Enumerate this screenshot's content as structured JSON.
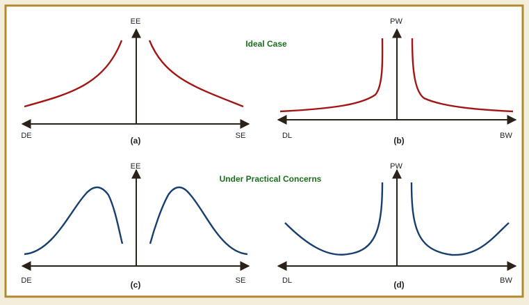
{
  "panels": [
    {
      "y_label": "EE",
      "x_left": "DE",
      "x_right": "SE",
      "caption": "(a)"
    },
    {
      "y_label": "PW",
      "x_left": "DL",
      "x_right": "BW",
      "caption": "(b)"
    },
    {
      "y_label": "EE",
      "x_left": "DE",
      "x_right": "SE",
      "caption": "(c)"
    },
    {
      "y_label": "PW",
      "x_left": "DL",
      "x_right": "BW",
      "caption": "(d)"
    }
  ],
  "row_titles": [
    "Ideal Case",
    "Under Practical Concerns"
  ]
}
